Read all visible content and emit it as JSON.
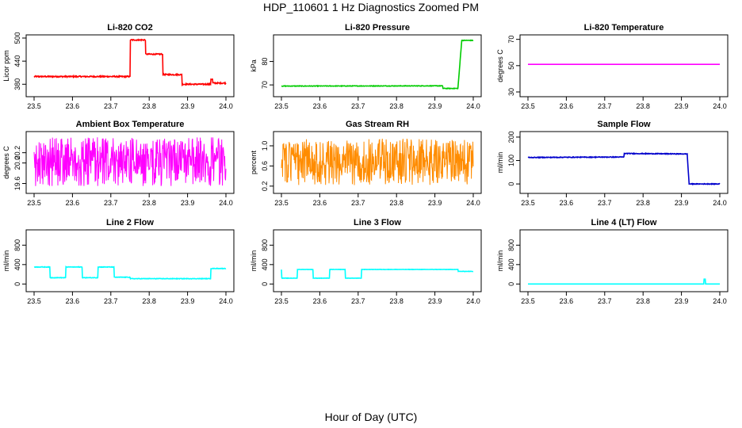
{
  "title": "HDP_110601  1 Hz Diagnostics Zoomed PM",
  "x_axis_title": "Hour of Day (UTC)",
  "chart_data": [
    {
      "type": "line",
      "title": "Li-820 CO2",
      "ylabel": "Licor ppm",
      "color": "#ff0000",
      "xlim": [
        23.5,
        24.0
      ],
      "ylim": [
        360,
        500
      ],
      "xticks": [
        "23.5",
        "23.6",
        "23.7",
        "23.8",
        "23.9",
        "24.0"
      ],
      "yticks": [
        "380",
        "440",
        "500"
      ],
      "yticks_values": [
        380,
        440,
        500
      ],
      "series": [
        {
          "x": [
            23.5,
            23.75,
            23.751,
            23.79,
            23.791,
            23.835,
            23.836,
            23.885,
            23.886,
            23.96,
            23.961,
            23.965,
            23.966,
            24.0
          ],
          "y": [
            400,
            400,
            495,
            495,
            458,
            458,
            405,
            405,
            380,
            380,
            393,
            393,
            383,
            383
          ],
          "noise": 1.5
        }
      ]
    },
    {
      "type": "line",
      "title": "Li-820 Pressure",
      "ylabel": "kPa",
      "color": "#00cc00",
      "xlim": [
        23.5,
        24.0
      ],
      "ylim": [
        67,
        90
      ],
      "xticks": [
        "23.5",
        "23.6",
        "23.7",
        "23.8",
        "23.9",
        "24.0"
      ],
      "yticks": [
        "70",
        "80"
      ],
      "yticks_values": [
        70,
        80
      ],
      "series": [
        {
          "x": [
            23.5,
            23.92,
            23.921,
            23.96,
            23.97,
            24.0
          ],
          "y": [
            69.5,
            69.6,
            68.5,
            68.5,
            89,
            89
          ],
          "noise": 0.12
        }
      ]
    },
    {
      "type": "line",
      "title": "Li-820 Temperature",
      "ylabel": "degrees C",
      "color": "#ff00ff",
      "xlim": [
        23.5,
        24.0
      ],
      "ylim": [
        30,
        71
      ],
      "xticks": [
        "23.5",
        "23.6",
        "23.7",
        "23.8",
        "23.9",
        "24.0"
      ],
      "yticks": [
        "30",
        "50",
        "70"
      ],
      "yticks_values": [
        30,
        50,
        70
      ],
      "series": [
        {
          "x": [
            23.5,
            24.0
          ],
          "y": [
            51,
            51
          ],
          "noise": 0
        }
      ]
    },
    {
      "type": "line",
      "title": "Ambient Box Temperature",
      "ylabel": "degrees C",
      "color": "#ff00ff",
      "xlim": [
        23.5,
        24.0
      ],
      "ylim": [
        19.5,
        20.55
      ],
      "xticks": [
        "23.5",
        "23.6",
        "23.7",
        "23.8",
        "23.9",
        "24.0"
      ],
      "yticks": [
        "19.6",
        "20.0",
        "20.2"
      ],
      "yticks_values": [
        19.6,
        20.0,
        20.2
      ],
      "series": [
        {
          "x": [
            23.5,
            24.0
          ],
          "y": [
            19.85,
            19.85
          ],
          "noise": 0.18,
          "band": [
            19.55,
            20.5
          ]
        }
      ]
    },
    {
      "type": "line",
      "title": "Gas Stream RH",
      "ylabel": "percent",
      "color": "#ff8c00",
      "xlim": [
        23.5,
        24.0
      ],
      "ylim": [
        0.15,
        1.22
      ],
      "xticks": [
        "23.5",
        "23.6",
        "23.7",
        "23.8",
        "23.9",
        "24.0"
      ],
      "yticks": [
        "0.2",
        "0.6",
        "1.0"
      ],
      "yticks_values": [
        0.2,
        0.6,
        1.0
      ],
      "series": [
        {
          "x": [
            23.5,
            24.0
          ],
          "y": [
            0.65,
            0.65
          ],
          "noise": 0.22,
          "band": [
            0.22,
            1.15
          ]
        }
      ]
    },
    {
      "type": "line",
      "title": "Sample Flow",
      "ylabel": "ml/min",
      "color": "#0000cc",
      "xlim": [
        23.5,
        24.0
      ],
      "ylim": [
        -20,
        210
      ],
      "xticks": [
        "23.5",
        "23.6",
        "23.7",
        "23.8",
        "23.9",
        "24.0"
      ],
      "yticks": [
        "0",
        "100",
        "200"
      ],
      "yticks_values": [
        0,
        100,
        200
      ],
      "series": [
        {
          "x": [
            23.5,
            23.75,
            23.751,
            23.915,
            23.92,
            24.0
          ],
          "y": [
            113,
            115,
            130,
            128,
            0,
            0
          ],
          "noise": 1.5
        }
      ]
    },
    {
      "type": "line",
      "title": "Line 2 Flow",
      "ylabel": "ml/min",
      "color": "#00ffff",
      "xlim": [
        23.5,
        24.0
      ],
      "ylim": [
        -60,
        1050
      ],
      "xticks": [
        "23.5",
        "23.6",
        "23.7",
        "23.8",
        "23.9",
        "24.0"
      ],
      "yticks": [
        "0",
        "400",
        "800"
      ],
      "yticks_values": [
        0,
        400,
        800
      ],
      "series": [
        {
          "x": [
            23.5,
            23.541,
            23.542,
            23.582,
            23.583,
            23.625,
            23.626,
            23.666,
            23.667,
            23.708,
            23.709,
            23.75,
            23.751,
            23.96,
            23.961,
            24.0
          ],
          "y": [
            350,
            350,
            130,
            130,
            350,
            350,
            130,
            130,
            350,
            350,
            140,
            140,
            110,
            110,
            320,
            320
          ],
          "noise": 5
        }
      ]
    },
    {
      "type": "line",
      "title": "Line 3 Flow",
      "ylabel": "ml/min",
      "color": "#00ffff",
      "xlim": [
        23.5,
        24.0
      ],
      "ylim": [
        -60,
        1050
      ],
      "xticks": [
        "23.5",
        "23.6",
        "23.7",
        "23.8",
        "23.9",
        "24.0"
      ],
      "yticks": [
        "0",
        "400",
        "800"
      ],
      "yticks_values": [
        0,
        400,
        800
      ],
      "series": [
        {
          "x": [
            23.5,
            23.501,
            23.541,
            23.542,
            23.582,
            23.583,
            23.625,
            23.626,
            23.666,
            23.667,
            23.708,
            23.709,
            23.96,
            23.961,
            24.0
          ],
          "y": [
            300,
            120,
            120,
            300,
            300,
            120,
            120,
            300,
            300,
            120,
            120,
            300,
            300,
            260,
            260
          ],
          "noise": 3
        }
      ]
    },
    {
      "type": "line",
      "title": "Line 4 (LT) Flow",
      "ylabel": "ml/min",
      "color": "#00ffff",
      "xlim": [
        23.5,
        24.0
      ],
      "ylim": [
        -60,
        1050
      ],
      "xticks": [
        "23.5",
        "23.6",
        "23.7",
        "23.8",
        "23.9",
        "24.0"
      ],
      "yticks": [
        "0",
        "400",
        "800"
      ],
      "yticks_values": [
        0,
        400,
        800
      ],
      "series": [
        {
          "x": [
            23.5,
            23.958,
            23.959,
            23.962,
            23.963,
            24.0
          ],
          "y": [
            0,
            0,
            100,
            100,
            0,
            0
          ],
          "noise": 0
        }
      ]
    }
  ]
}
